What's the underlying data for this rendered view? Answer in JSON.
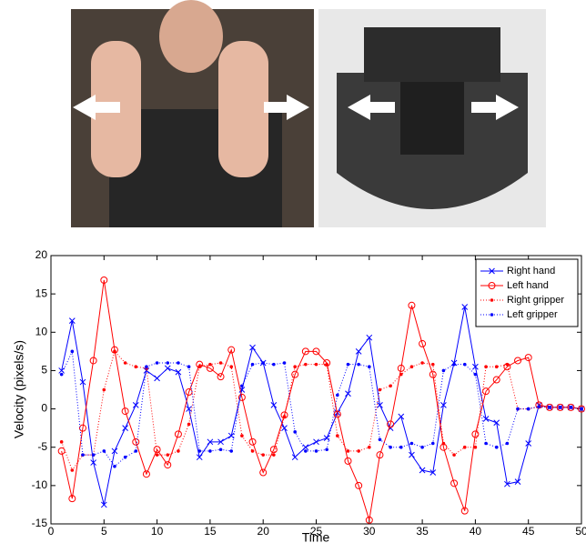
{
  "chart_data": {
    "type": "line",
    "xlabel": "Time",
    "ylabel": "Velocity (pixels/s)",
    "x": [
      1,
      2,
      3,
      4,
      5,
      6,
      7,
      8,
      9,
      10,
      11,
      12,
      13,
      14,
      15,
      16,
      17,
      18,
      19,
      20,
      21,
      22,
      23,
      24,
      25,
      26,
      27,
      28,
      29,
      30,
      31,
      32,
      33,
      34,
      35,
      36,
      37,
      38,
      39,
      40,
      41,
      42,
      43,
      44,
      45,
      46,
      47,
      48,
      49,
      50
    ],
    "xlim": [
      0,
      50
    ],
    "xticks": [
      0,
      5,
      10,
      15,
      20,
      25,
      30,
      35,
      40,
      45,
      50
    ],
    "ylim": [
      -15,
      20
    ],
    "yticks": [
      -15,
      -10,
      -5,
      0,
      5,
      10,
      15,
      20
    ],
    "legend": "upper right",
    "series": [
      {
        "name": "Right hand",
        "color": "#0000ff",
        "marker": "x",
        "linestyle": "solid",
        "values": [
          5,
          11.5,
          3.5,
          -7,
          -12.5,
          -5.5,
          -2.5,
          0.5,
          5,
          4,
          5.3,
          4.8,
          0,
          -6.3,
          -4.3,
          -4.3,
          -3.5,
          2.5,
          8,
          6,
          0.5,
          -2.5,
          -6.3,
          -5,
          -4.3,
          -3.8,
          -0.5,
          2,
          7.5,
          9.3,
          0.5,
          -2.5,
          -1,
          -6,
          -8,
          -8.3,
          0.5,
          6,
          13.3,
          5.5,
          -1.3,
          -1.8,
          -9.8,
          -9.5,
          -4.5,
          0.5,
          0.2,
          0.2,
          0.2,
          0
        ]
      },
      {
        "name": "Left hand",
        "color": "#ff0000",
        "marker": "circle",
        "linestyle": "solid",
        "values": [
          -5.5,
          -11.7,
          -2.5,
          6.3,
          16.8,
          7.7,
          -0.3,
          -4.3,
          -8.5,
          -5.3,
          -7.3,
          -3.3,
          2.2,
          5.8,
          5.3,
          4.2,
          7.7,
          1.5,
          -4.3,
          -8.3,
          -5.3,
          -0.8,
          4.5,
          7.5,
          7.5,
          6,
          -0.7,
          -6.8,
          -10,
          -14.5,
          -6,
          -2,
          5.3,
          13.5,
          8.5,
          4.5,
          -5,
          -9.7,
          -13.3,
          -3.3,
          2.3,
          3.8,
          5.5,
          6.3,
          6.7,
          0.5,
          0.2,
          0.2,
          0.2,
          0
        ]
      },
      {
        "name": "Right gripper",
        "color": "#ff0000",
        "marker": "dot",
        "linestyle": "dotted",
        "values": [
          -4.3,
          -8,
          -6,
          -6,
          2.5,
          7.5,
          6,
          5.5,
          5.3,
          -6,
          -6,
          -5.5,
          -2,
          5.5,
          5.8,
          6,
          5.5,
          -3.5,
          -5.5,
          -6,
          -6,
          -1,
          5.5,
          5.8,
          5.8,
          5.8,
          -3.5,
          -5.5,
          -5.5,
          -5,
          2.5,
          3,
          4.5,
          5.5,
          6,
          5.8,
          -4.5,
          -6,
          -5,
          -5,
          5.5,
          5.5,
          5.8,
          0,
          0,
          0.3,
          0.2,
          0.2,
          0.2,
          0
        ]
      },
      {
        "name": "Left gripper",
        "color": "#0000ff",
        "marker": "dot",
        "linestyle": "dotted",
        "values": [
          4.5,
          7.5,
          -6,
          -6,
          -5.5,
          -7.5,
          -6.3,
          -5.5,
          5.5,
          6,
          6,
          6,
          5.5,
          -5.5,
          -5.5,
          -5.3,
          -5.5,
          3,
          5.8,
          6,
          5.8,
          6,
          -3,
          -5.5,
          -5.5,
          -5.3,
          1.8,
          5.8,
          5.8,
          5.5,
          -4,
          -5,
          -5,
          -4.5,
          -5,
          -4.5,
          5,
          5.8,
          5.8,
          4.5,
          -4.5,
          -5,
          -4.5,
          0,
          0,
          0.3,
          0.2,
          0.2,
          0.2,
          0
        ]
      }
    ]
  }
}
